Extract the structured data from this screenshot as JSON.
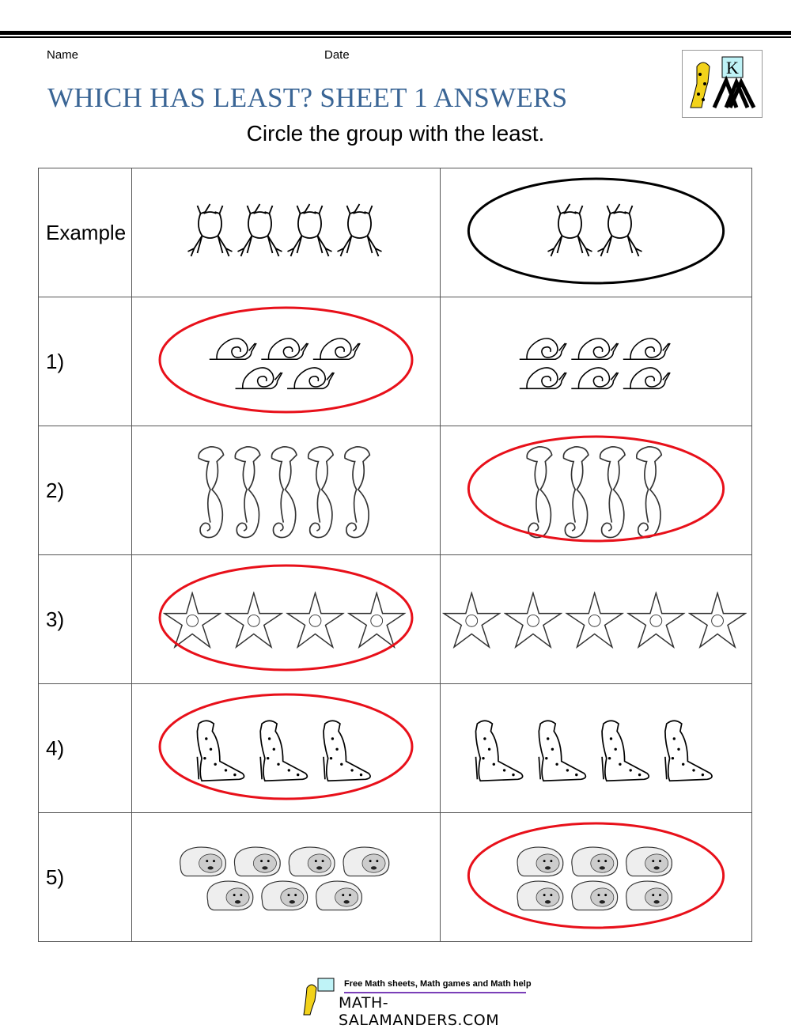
{
  "header": {
    "name_label": "Name",
    "date_label": "Date",
    "title": "WHICH HAS LEAST? SHEET 1 ANSWERS",
    "instruction": "Circle the group with the least.",
    "logo_letter": "K"
  },
  "rows": [
    {
      "label": "Example",
      "animal": "frog",
      "left": [
        4
      ],
      "right": [
        2
      ],
      "circled": "right",
      "circle_color": "#000000"
    },
    {
      "label": "1)",
      "animal": "snail",
      "left": [
        3,
        2
      ],
      "right": [
        3,
        3
      ],
      "circled": "left",
      "circle_color": "#e8101a"
    },
    {
      "label": "2)",
      "animal": "seahorse",
      "left": [
        5
      ],
      "right": [
        4
      ],
      "circled": "right",
      "circle_color": "#e8101a"
    },
    {
      "label": "3)",
      "animal": "starfish",
      "left": [
        4
      ],
      "right": [
        5
      ],
      "circled": "left",
      "circle_color": "#e8101a"
    },
    {
      "label": "4)",
      "animal": "cheetah",
      "left": [
        3
      ],
      "right": [
        4
      ],
      "circled": "left",
      "circle_color": "#e8101a"
    },
    {
      "label": "5)",
      "animal": "hamster",
      "left": [
        4,
        3
      ],
      "right": [
        3,
        3
      ],
      "circled": "right",
      "circle_color": "#e8101a"
    }
  ],
  "footer": {
    "tagline": "Free Math sheets, Math games and Math help",
    "site": "MATH-SALAMANDERS.COM"
  }
}
